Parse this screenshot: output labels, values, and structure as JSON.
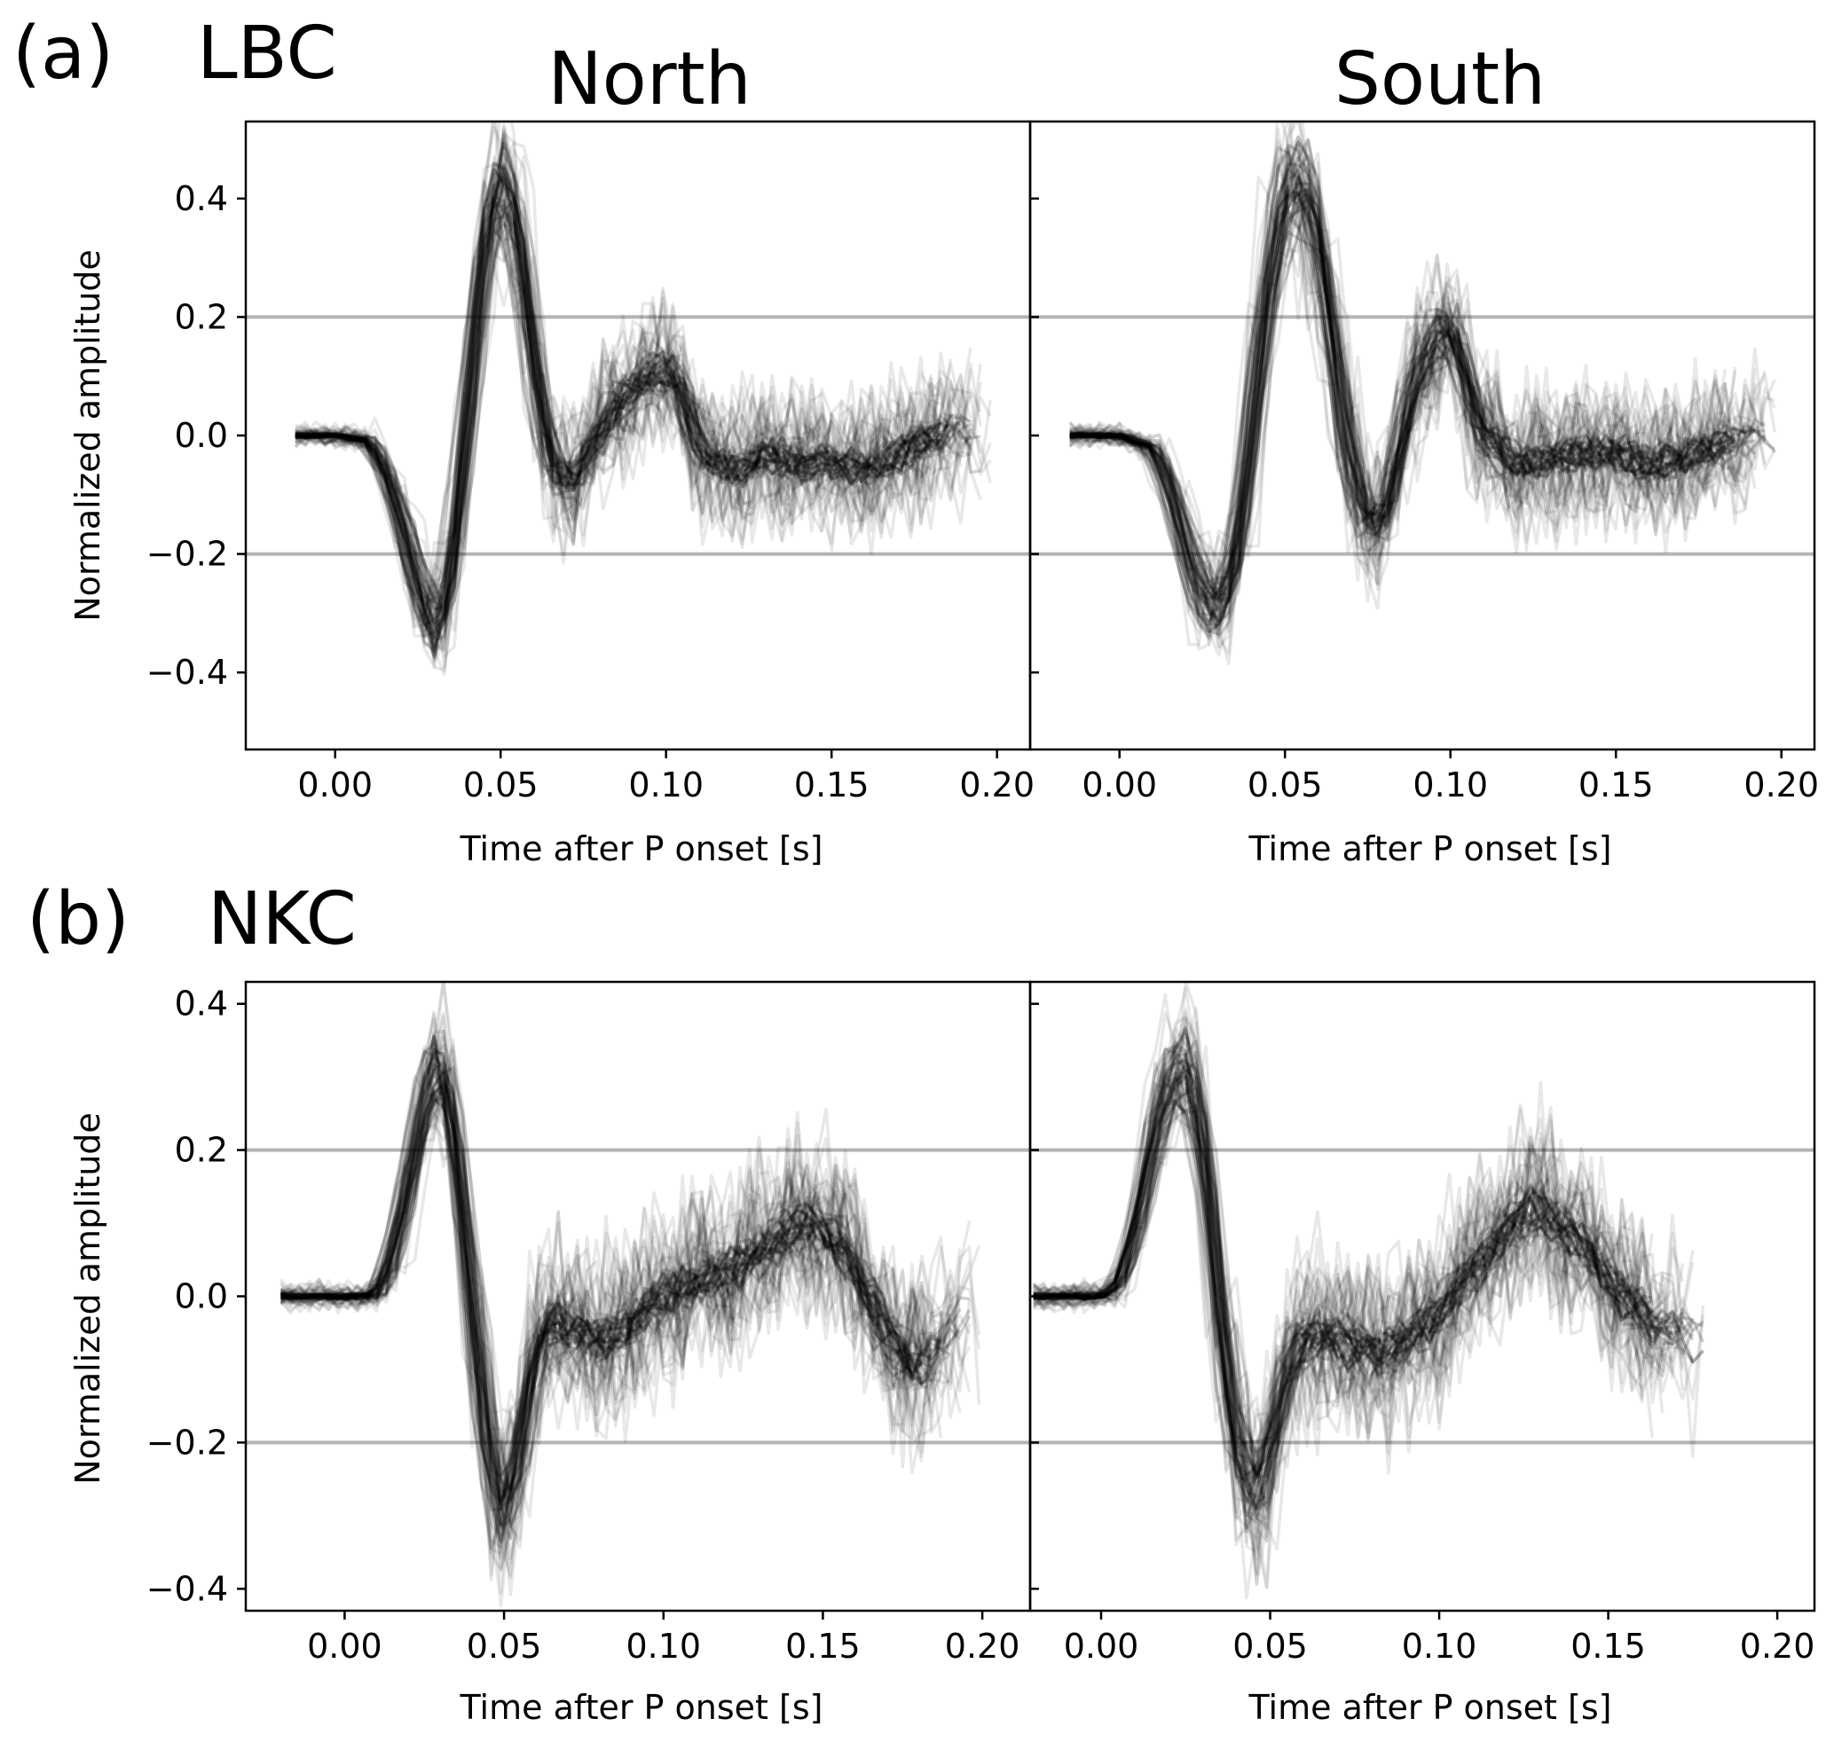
{
  "figure": {
    "rows": [
      {
        "panel_label": "(a)",
        "station": "LBC",
        "column_titles": [
          "North",
          "South"
        ],
        "ylabel": "Normalized amplitude",
        "xlabel": "Time after P onset [s]"
      },
      {
        "panel_label": "(b)",
        "station": "NKC",
        "column_titles": [
          "",
          ""
        ],
        "ylabel": "Normalized amplitude",
        "xlabel": "Time after P onset [s]"
      }
    ],
    "colors": {
      "trace": "#000000",
      "reference_line": "#b4b4b4",
      "axes": "#000000"
    }
  },
  "chart_data": [
    {
      "type": "line",
      "panel": "(a) LBC North",
      "xlabel": "Time after P onset [s]",
      "ylabel": "Normalized amplitude",
      "xlim": [
        -0.027,
        0.21
      ],
      "ylim": [
        -0.53,
        0.53
      ],
      "xticks": [
        "0.00",
        "0.05",
        "0.10",
        "0.15",
        "0.20"
      ],
      "xtick_values": [
        0.0,
        0.05,
        0.1,
        0.15,
        0.2
      ],
      "yticks": [
        "0.4",
        "0.2",
        "0.0",
        "−0.2",
        "−0.4"
      ],
      "ytick_values": [
        0.4,
        0.2,
        0.0,
        -0.2,
        -0.4
      ],
      "reference_lines_y": [
        0.2,
        -0.2
      ],
      "grid": false,
      "legend": false,
      "trace_count": 70,
      "representative_trace": {
        "x": [
          -0.012,
          0.0,
          0.01,
          0.015,
          0.02,
          0.025,
          0.03,
          0.035,
          0.04,
          0.045,
          0.05,
          0.055,
          0.06,
          0.065,
          0.07,
          0.075,
          0.08,
          0.085,
          0.09,
          0.095,
          0.1,
          0.105,
          0.11,
          0.115,
          0.12,
          0.13,
          0.14,
          0.15,
          0.16,
          0.17,
          0.18,
          0.19,
          0.2
        ],
        "y": [
          0.0,
          0.0,
          -0.01,
          -0.06,
          -0.15,
          -0.26,
          -0.33,
          -0.22,
          0.05,
          0.33,
          0.43,
          0.35,
          0.1,
          -0.05,
          -0.08,
          -0.04,
          0.01,
          0.05,
          0.08,
          0.1,
          0.11,
          0.06,
          -0.02,
          -0.05,
          -0.06,
          -0.03,
          -0.05,
          -0.04,
          -0.06,
          -0.03,
          0.0,
          0.01,
          0.0
        ]
      }
    },
    {
      "type": "line",
      "panel": "(a) LBC South",
      "xlabel": "Time after P onset [s]",
      "ylabel": "Normalized amplitude",
      "xlim": [
        -0.027,
        0.21
      ],
      "ylim": [
        -0.53,
        0.53
      ],
      "xticks": [
        "0.00",
        "0.05",
        "0.10",
        "0.15",
        "0.20"
      ],
      "xtick_values": [
        0.0,
        0.05,
        0.1,
        0.15,
        0.2
      ],
      "yticks": [
        "0.4",
        "0.2",
        "0.0",
        "−0.2",
        "−0.4"
      ],
      "ytick_values": [
        0.4,
        0.2,
        0.0,
        -0.2,
        -0.4
      ],
      "reference_lines_y": [
        0.2,
        -0.2
      ],
      "grid": false,
      "legend": false,
      "trace_count": 70,
      "representative_trace": {
        "x": [
          -0.015,
          0.0,
          0.01,
          0.015,
          0.02,
          0.025,
          0.03,
          0.035,
          0.04,
          0.045,
          0.05,
          0.055,
          0.06,
          0.065,
          0.07,
          0.075,
          0.08,
          0.085,
          0.09,
          0.095,
          0.1,
          0.105,
          0.11,
          0.12,
          0.13,
          0.14,
          0.15,
          0.16,
          0.17,
          0.18,
          0.19,
          0.2
        ],
        "y": [
          0.0,
          0.0,
          -0.02,
          -0.08,
          -0.18,
          -0.27,
          -0.3,
          -0.22,
          0.0,
          0.25,
          0.4,
          0.43,
          0.35,
          0.15,
          -0.05,
          -0.15,
          -0.14,
          -0.02,
          0.1,
          0.16,
          0.18,
          0.1,
          0.0,
          -0.05,
          -0.04,
          -0.03,
          -0.03,
          -0.05,
          -0.04,
          -0.02,
          0.0,
          0.0
        ]
      }
    },
    {
      "type": "line",
      "panel": "(b) NKC North",
      "xlabel": "Time after P onset [s]",
      "ylabel": "Normalized amplitude",
      "xlim": [
        -0.031,
        0.215
      ],
      "ylim": [
        -0.43,
        0.43
      ],
      "xticks": [
        "0.00",
        "0.05",
        "0.10",
        "0.15",
        "0.20"
      ],
      "xtick_values": [
        0.0,
        0.05,
        0.1,
        0.15,
        0.2
      ],
      "yticks": [
        "0.4",
        "0.2",
        "0.0",
        "−0.2",
        "−0.4"
      ],
      "ytick_values": [
        0.4,
        0.2,
        0.0,
        -0.2,
        -0.4
      ],
      "reference_lines_y": [
        0.2,
        -0.2
      ],
      "grid": false,
      "legend": false,
      "trace_count": 70,
      "representative_trace": {
        "x": [
          -0.02,
          0.0,
          0.01,
          0.015,
          0.02,
          0.025,
          0.03,
          0.035,
          0.04,
          0.045,
          0.05,
          0.055,
          0.06,
          0.065,
          0.07,
          0.08,
          0.09,
          0.1,
          0.11,
          0.12,
          0.13,
          0.14,
          0.15,
          0.16,
          0.17,
          0.18,
          0.19,
          0.2
        ],
        "y": [
          0.0,
          0.0,
          0.0,
          0.05,
          0.15,
          0.26,
          0.32,
          0.22,
          0.0,
          -0.2,
          -0.3,
          -0.22,
          -0.08,
          -0.02,
          -0.05,
          -0.06,
          -0.04,
          0.0,
          0.02,
          0.03,
          0.06,
          0.09,
          0.1,
          0.04,
          -0.05,
          -0.1,
          -0.05,
          0.0
        ]
      }
    },
    {
      "type": "line",
      "panel": "(b) NKC South",
      "xlabel": "Time after P onset [s]",
      "ylabel": "Normalized amplitude",
      "xlim": [
        -0.021,
        0.211
      ],
      "ylim": [
        -0.43,
        0.43
      ],
      "xticks": [
        "0.00",
        "0.05",
        "0.10",
        "0.15",
        "0.20"
      ],
      "xtick_values": [
        0.0,
        0.05,
        0.1,
        0.15,
        0.2
      ],
      "yticks": [
        "0.4",
        "0.2",
        "0.0",
        "−0.2",
        "−0.4"
      ],
      "ytick_values": [
        0.4,
        0.2,
        0.0,
        -0.2,
        -0.4
      ],
      "reference_lines_y": [
        0.2,
        -0.2
      ],
      "grid": false,
      "legend": false,
      "trace_count": 70,
      "representative_trace": {
        "x": [
          -0.02,
          0.0,
          0.005,
          0.01,
          0.015,
          0.02,
          0.025,
          0.03,
          0.035,
          0.04,
          0.045,
          0.05,
          0.055,
          0.06,
          0.07,
          0.08,
          0.09,
          0.1,
          0.11,
          0.12,
          0.13,
          0.14,
          0.15,
          0.16,
          0.17,
          0.18
        ],
        "y": [
          0.0,
          0.0,
          0.02,
          0.1,
          0.22,
          0.3,
          0.32,
          0.2,
          -0.05,
          -0.22,
          -0.27,
          -0.2,
          -0.1,
          -0.05,
          -0.06,
          -0.08,
          -0.06,
          -0.02,
          0.04,
          0.1,
          0.12,
          0.08,
          0.02,
          -0.03,
          -0.05,
          -0.06
        ]
      }
    }
  ]
}
